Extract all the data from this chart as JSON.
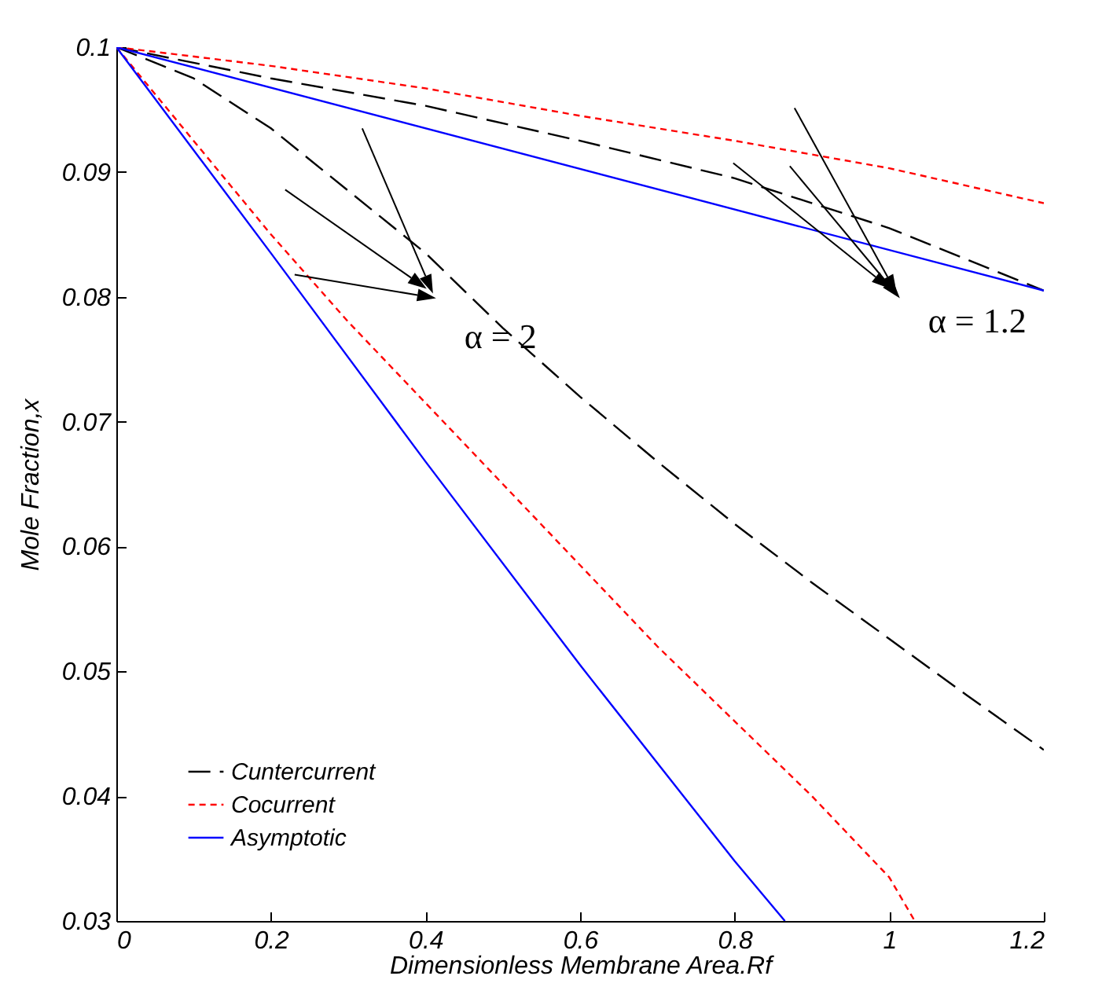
{
  "chart_data": {
    "type": "line",
    "xlabel": "Dimensionless Membrane Area.Rf",
    "ylabel": "Mole Fraction,x",
    "annotations": [
      "α = 2",
      "α = 1.2"
    ],
    "series": [
      {
        "name": "Cuntercurrent",
        "color": "#000000",
        "line_style": "dashed",
        "x": [
          0,
          0.1,
          0.2,
          0.3,
          0.4,
          0.5,
          0.6,
          0.7,
          0.8,
          0.9,
          1.0,
          1.1,
          1.2
        ],
        "values": [
          0.1,
          0.0975,
          0.0935,
          0.0885,
          0.0835,
          0.0775,
          0.072,
          0.0668,
          0.0618,
          0.0571,
          0.0526,
          0.0481,
          0.0437
        ]
      },
      {
        "name": "Cocurrent",
        "color": "#ff0000",
        "line_style": "dotted",
        "x": [
          0,
          0.1,
          0.2,
          0.3,
          0.4,
          0.5,
          0.6,
          0.7,
          0.8,
          0.9,
          1.0,
          1.033
        ],
        "values": [
          0.1,
          0.0925,
          0.085,
          0.078,
          0.0715,
          0.065,
          0.0585,
          0.052,
          0.046,
          0.04,
          0.0335,
          0.03
        ]
      },
      {
        "name": "Asymptotic",
        "color": "#0000ff",
        "line_style": "solid",
        "x": [
          0,
          0.2,
          0.4,
          0.6,
          0.8,
          0.865
        ],
        "values": [
          0.1,
          0.0835,
          0.0668,
          0.0505,
          0.0348,
          0.03
        ]
      },
      {
        "color": "#000000",
        "line_style": "dashed",
        "x": [
          0,
          0.2,
          0.4,
          0.6,
          0.8,
          1.0,
          1.2
        ],
        "values": [
          0.1,
          0.0975,
          0.0953,
          0.0925,
          0.0895,
          0.0855,
          0.0805
        ]
      },
      {
        "color": "#ff0000",
        "line_style": "dotted",
        "x": [
          0,
          0.2,
          0.4,
          0.6,
          0.8,
          1.0,
          1.2
        ],
        "values": [
          0.1,
          0.0985,
          0.0967,
          0.0945,
          0.0925,
          0.0903,
          0.0875
        ]
      },
      {
        "color": "#0000ff",
        "line_style": "solid",
        "x": [
          0,
          1.2
        ],
        "values": [
          0.1,
          0.0805
        ]
      }
    ],
    "xlim": [
      0,
      1.2
    ],
    "xticks": [
      0,
      0.2,
      0.4,
      0.6,
      0.8,
      1,
      1.2
    ],
    "ylim": [
      0.03,
      0.1
    ],
    "yticks": [
      0.03,
      0.04,
      0.05,
      0.06,
      0.07,
      0.08,
      0.09,
      0.1
    ],
    "legend": "bottom left",
    "grid": false,
    "marker": "none"
  }
}
